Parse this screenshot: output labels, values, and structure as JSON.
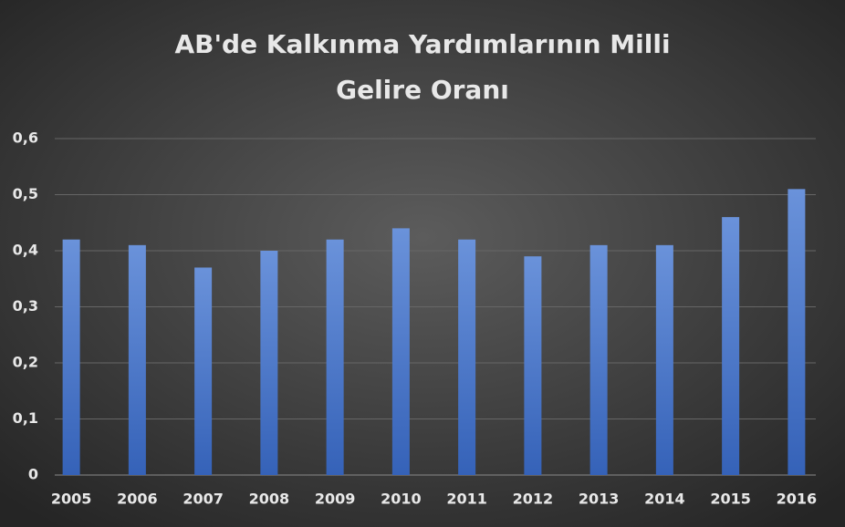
{
  "chart_data": {
    "type": "bar",
    "title": [
      "AB'de Kalkınma Yardımlarının Milli",
      "Gelire Oranı"
    ],
    "categories": [
      "2005",
      "2006",
      "2007",
      "2008",
      "2009",
      "2010",
      "2011",
      "2012",
      "2013",
      "2014",
      "2015",
      "2016"
    ],
    "values": [
      0.42,
      0.41,
      0.37,
      0.4,
      0.42,
      0.44,
      0.42,
      0.39,
      0.41,
      0.41,
      0.46,
      0.51
    ],
    "color": "#4a76c8",
    "ylim": [
      0,
      0.6
    ],
    "yticks": [
      0,
      {
        "value": 0.1,
        "label": "0,1"
      },
      {
        "value": 0.2,
        "label": "0,2"
      },
      {
        "value": 0.3,
        "label": "0,3"
      },
      {
        "value": 0.4,
        "label": "0,4"
      },
      {
        "value": 0.5,
        "label": "0,5"
      },
      {
        "value": 0.6,
        "label": "0,6"
      }
    ],
    "grid": true
  }
}
